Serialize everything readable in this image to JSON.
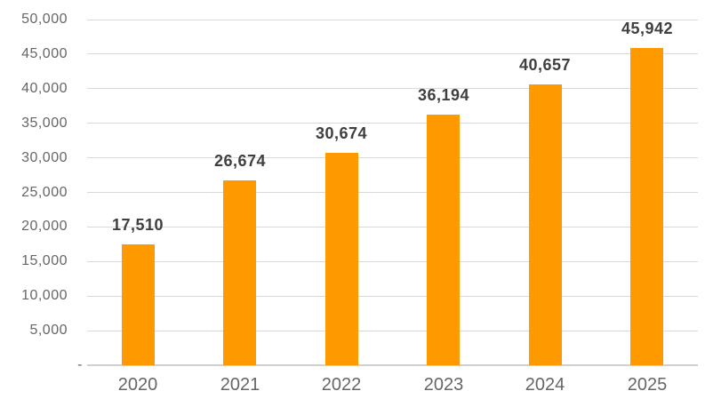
{
  "chart_data": {
    "type": "bar",
    "title": "",
    "xlabel": "",
    "ylabel": "",
    "categories": [
      "2020",
      "2021",
      "2022",
      "2023",
      "2024",
      "2025"
    ],
    "values": [
      17510,
      26674,
      30674,
      36194,
      40657,
      45942
    ],
    "data_labels": [
      "17,510",
      "26,674",
      "30,674",
      "36,194",
      "40,657",
      "45,942"
    ],
    "ylim": [
      0,
      50000
    ],
    "ytick_interval": 5000,
    "ytick_labels": [
      "-",
      "5,000",
      "10,000",
      "15,000",
      "20,000",
      "25,000",
      "30,000",
      "35,000",
      "40,000",
      "45,000",
      "50,000"
    ],
    "grid": true,
    "legend": false,
    "colors": {
      "bar": "#FF9900",
      "gridline": "#D9D9D9",
      "axis_line": "#D0D0D0",
      "tick_label": "#666666",
      "data_label": "#3F3F3F"
    }
  }
}
